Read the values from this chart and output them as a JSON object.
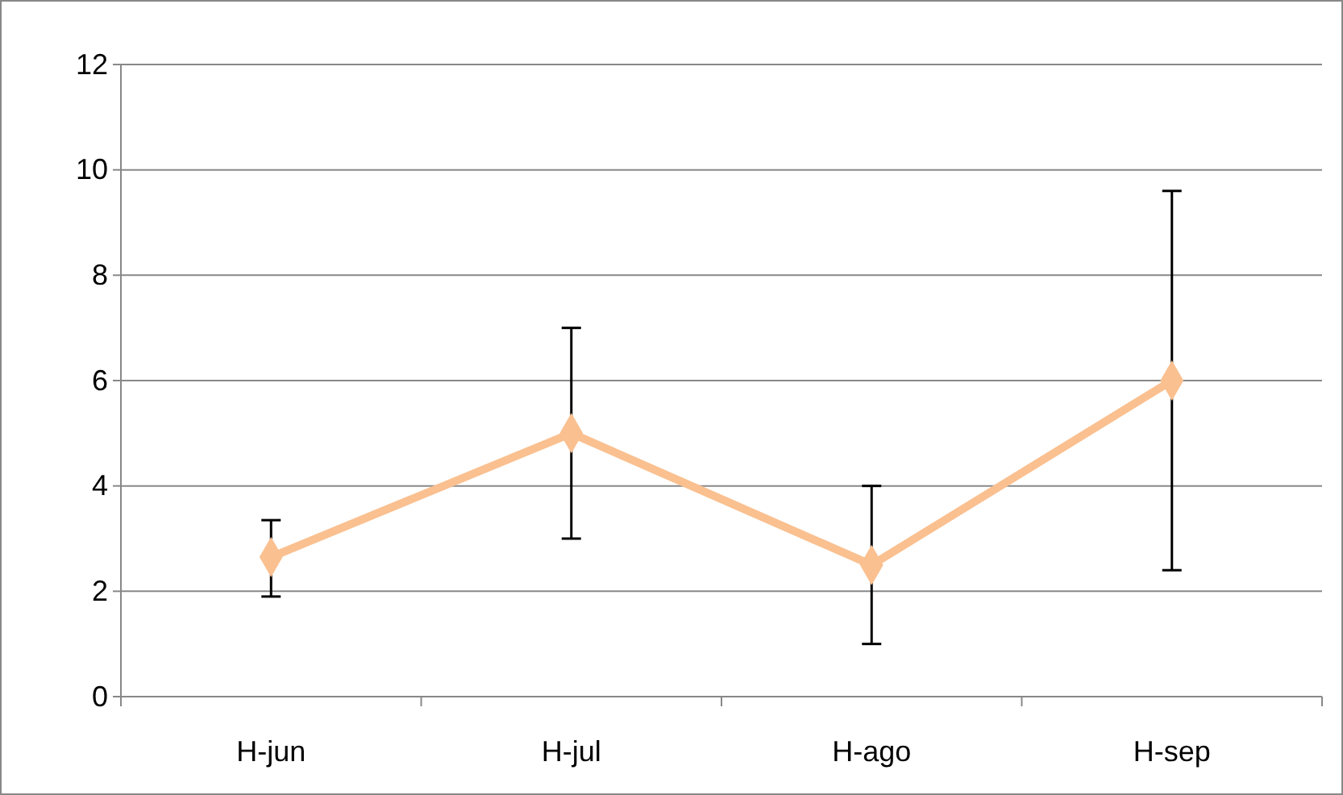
{
  "chart_data": {
    "type": "line",
    "categories": [
      "H-jun",
      "H-jul",
      "H-ago",
      "H-sep"
    ],
    "series": [
      {
        "color": "#fac090",
        "values": [
          2.65,
          5,
          2.5,
          6
        ],
        "errors": [
          [
            1.9,
            3.35
          ],
          [
            3,
            7
          ],
          [
            1,
            4
          ],
          [
            2.4,
            9.6
          ]
        ]
      }
    ],
    "ylim": [
      0,
      12
    ],
    "yticks": [
      0,
      2,
      4,
      6,
      8,
      10,
      12
    ],
    "grid": "y",
    "marker": "diamond",
    "line_style": "solid"
  }
}
